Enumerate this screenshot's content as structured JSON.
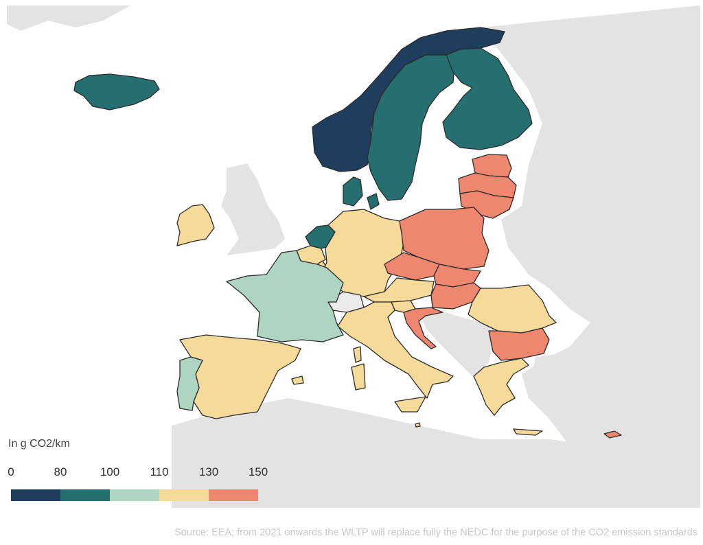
{
  "palette": {
    "band_0_80": "#1f3d5c",
    "band_80_100": "#256f70",
    "band_100_110": "#aed5c2",
    "band_110_130": "#f5da99",
    "band_130_150": "#ef8670",
    "no_data": "#ebebeb",
    "background_land": "#e3e3e3",
    "sea": "#ffffff"
  },
  "legend": {
    "title": "In g CO2/km",
    "ticks": [
      "0",
      "80",
      "100",
      "110",
      "130",
      "150"
    ]
  },
  "countries": {
    "norway": "band_0_80",
    "sweden": "band_80_100",
    "finland": "band_80_100",
    "iceland": "band_80_100",
    "denmark": "band_80_100",
    "netherlands": "band_80_100",
    "france": "band_100_110",
    "portugal": "band_100_110",
    "ireland": "band_110_130",
    "spain": "band_110_130",
    "germany": "band_110_130",
    "belgium": "band_110_130",
    "luxembourg": "band_110_130",
    "austria": "band_110_130",
    "italy": "band_110_130",
    "slovenia": "band_110_130",
    "romania": "band_110_130",
    "greece": "band_110_130",
    "malta": "band_110_130",
    "switzerland": "no_data",
    "estonia": "band_130_150",
    "latvia": "band_130_150",
    "lithuania": "band_130_150",
    "poland": "band_130_150",
    "czechia": "band_130_150",
    "slovakia": "band_130_150",
    "hungary": "band_130_150",
    "croatia": "band_130_150",
    "bulgaria": "band_130_150",
    "cyprus": "band_130_150"
  },
  "source": "Source:   EEA; from 2021 onwards the WLTP will replace fully the NEDC for the purpose of the CO2 emission standards"
}
